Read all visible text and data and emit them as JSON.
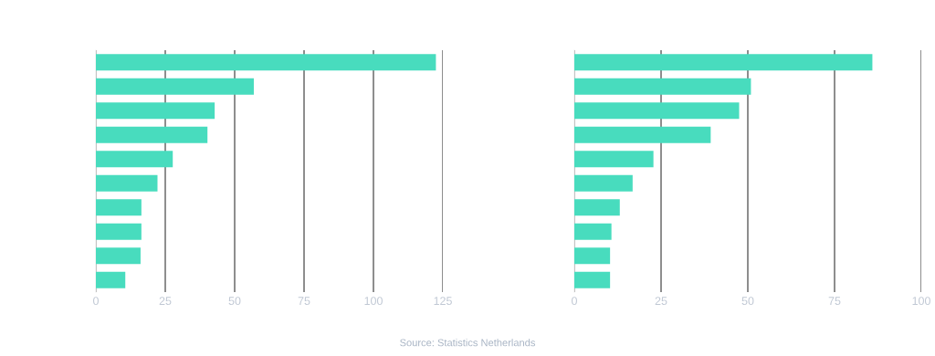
{
  "chart_data": [
    {
      "type": "bar",
      "orientation": "horizontal",
      "categories": [
        null,
        null,
        null,
        null,
        null,
        null,
        null,
        null,
        null,
        null
      ],
      "series": [
        {
          "color": "#48dcbe",
          "values": [
            122.5,
            56.9,
            42.8,
            40.2,
            27.7,
            22.2,
            16.4,
            16.4,
            16.1,
            10.6
          ]
        }
      ],
      "xlim": [
        0,
        125
      ],
      "xticks": [
        0,
        25,
        50,
        75,
        100,
        125
      ],
      "grid": "x",
      "legend": false
    },
    {
      "type": "bar",
      "orientation": "horizontal",
      "categories": [
        null,
        null,
        null,
        null,
        null,
        null,
        null,
        null,
        null,
        null
      ],
      "series": [
        {
          "color": "#48dcbe",
          "values": [
            85.9,
            50.9,
            47.5,
            39.3,
            22.8,
            16.8,
            13.1,
            10.7,
            10.3,
            10.3
          ]
        }
      ],
      "xlim": [
        0,
        100
      ],
      "xticks": [
        0,
        25,
        50,
        75,
        100
      ],
      "grid": "x",
      "legend": false,
      "annotations": [
        "Source: Statistics Netherlands"
      ]
    }
  ]
}
